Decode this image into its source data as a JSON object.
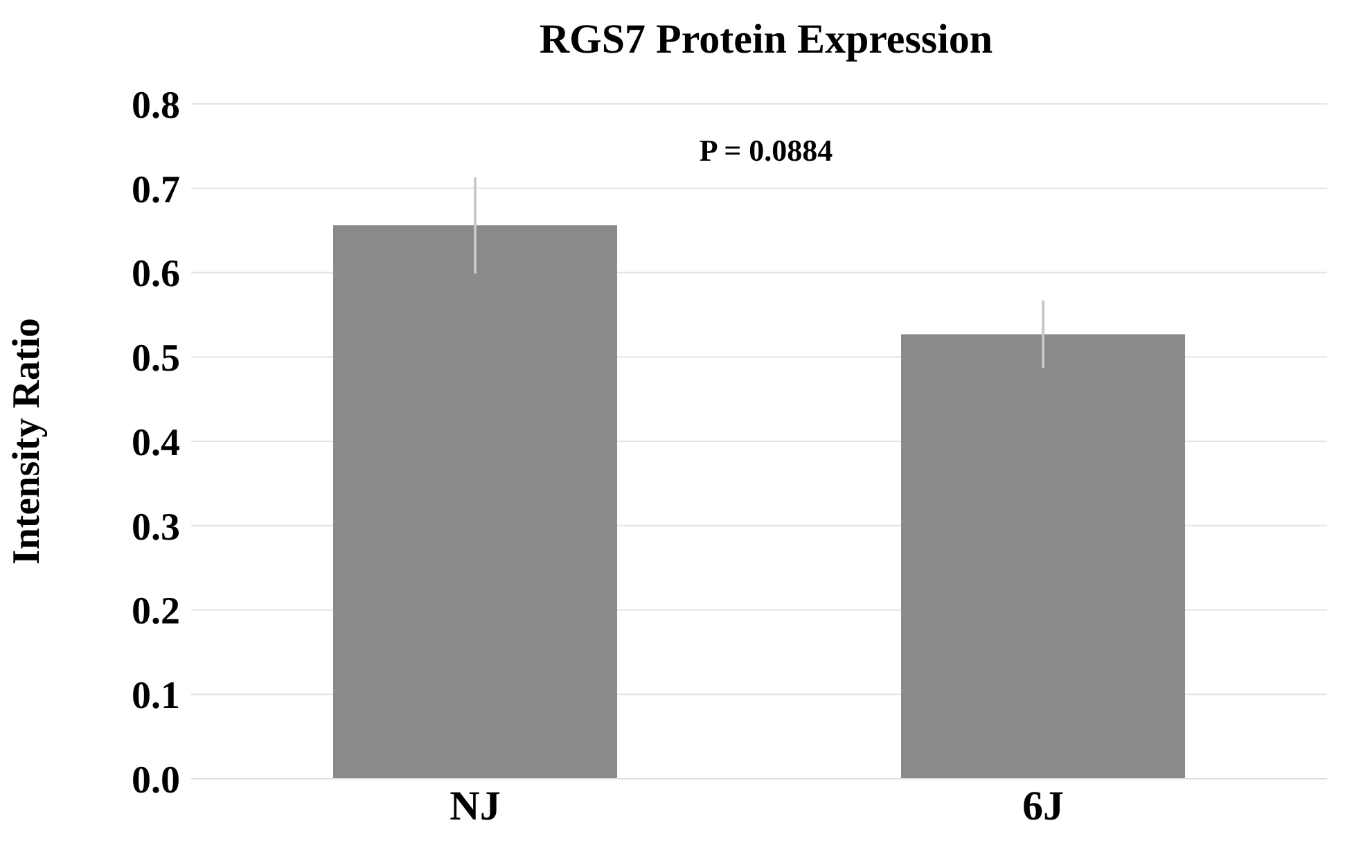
{
  "chart_data": {
    "type": "bar",
    "title": "RGS7 Protein Expression",
    "ylabel": "Intensity Ratio",
    "categories": [
      "NJ",
      "6J"
    ],
    "values": [
      0.656,
      0.527
    ],
    "errors": [
      0.057,
      0.04
    ],
    "color": "#8a8a8a",
    "ylim": [
      0,
      0.8
    ],
    "yticks": [
      {
        "value": 0,
        "label": "0.0"
      },
      0.1,
      0.2,
      0.3,
      0.4,
      0.5,
      0.6,
      0.7,
      0.8
    ],
    "grid": "y",
    "annotations": [
      "P = 0.0884"
    ]
  }
}
